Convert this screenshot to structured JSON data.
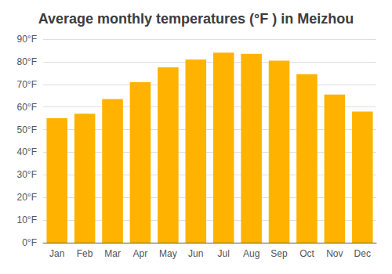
{
  "chart_data": {
    "type": "bar",
    "title": "Average monthly temperatures (°F ) in Meizhou",
    "categories": [
      "Jan",
      "Feb",
      "Mar",
      "Apr",
      "May",
      "Jun",
      "Jul",
      "Aug",
      "Sep",
      "Oct",
      "Nov",
      "Dec"
    ],
    "values": [
      55,
      57,
      63.5,
      71,
      77.5,
      81,
      84,
      83.5,
      80.5,
      74.5,
      65.5,
      58
    ],
    "color": "#FFB300",
    "ylim": [
      0,
      90
    ],
    "yticks": [
      {
        "value": 0,
        "label": "0°F"
      },
      {
        "value": 10,
        "label": "10°F"
      },
      {
        "value": 20,
        "label": "20°F"
      },
      {
        "value": 30,
        "label": "30°F"
      },
      {
        "value": 40,
        "label": "40°F"
      },
      {
        "value": 50,
        "label": "50°F"
      },
      {
        "value": 60,
        "label": "60°F"
      },
      {
        "value": 70,
        "label": "70°F"
      },
      {
        "value": 80,
        "label": "80°F"
      },
      {
        "value": 90,
        "label": "90°F"
      }
    ],
    "grid": true
  }
}
